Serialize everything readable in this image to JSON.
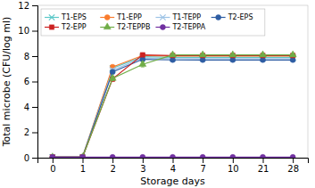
{
  "chart_data": {
    "type": "line",
    "xlabel": "Storage days",
    "ylabel": "Total microbe (CFU/log ml)",
    "categories": [
      0,
      1,
      2,
      3,
      4,
      7,
      10,
      21,
      28
    ],
    "series": [
      {
        "name": "T1-EPS",
        "color": "#5BC8C8",
        "marker": "x",
        "values": [
          0.05,
          0.05,
          7.05,
          7.95,
          7.9,
          7.9,
          7.9,
          7.9,
          7.9
        ],
        "errors": [
          0.03,
          0.03,
          0.13,
          0.08,
          0.0,
          0.0,
          0.0,
          0.0,
          0.0
        ]
      },
      {
        "name": "T1-EPP",
        "color": "#F97C2E",
        "marker": "circle",
        "values": [
          0.05,
          0.05,
          7.15,
          8.05,
          8.0,
          8.0,
          8.0,
          8.0,
          8.0
        ],
        "errors": [
          0.03,
          0.03,
          0.13,
          0.1,
          0.0,
          0.0,
          0.0,
          0.0,
          0.0
        ]
      },
      {
        "name": "T1-TEPP",
        "color": "#9DC3E6",
        "marker": "x",
        "values": [
          0.05,
          0.05,
          6.9,
          7.85,
          7.8,
          7.8,
          7.8,
          7.8,
          7.8
        ],
        "errors": [
          0.03,
          0.03,
          0.13,
          0.08,
          0.0,
          0.0,
          0.0,
          0.0,
          0.0
        ]
      },
      {
        "name": "T2-EPS",
        "color": "#2E5DA3",
        "marker": "circle",
        "values": [
          0.05,
          0.05,
          6.75,
          7.75,
          7.7,
          7.7,
          7.7,
          7.7,
          7.7
        ],
        "errors": [
          0.03,
          0.03,
          0.13,
          0.08,
          0.0,
          0.0,
          0.0,
          0.0,
          0.0
        ]
      },
      {
        "name": "T2-EPP",
        "color": "#CC2222",
        "marker": "square",
        "values": [
          0.05,
          0.05,
          6.2,
          8.1,
          8.05,
          8.05,
          8.05,
          8.05,
          8.05
        ],
        "errors": [
          0.03,
          0.03,
          0.18,
          0.12,
          0.0,
          0.0,
          0.0,
          0.0,
          0.0
        ]
      },
      {
        "name": "T2-TEPPB",
        "color": "#70AD47",
        "marker": "triangle",
        "values": [
          0.05,
          0.05,
          6.25,
          7.35,
          8.1,
          8.1,
          8.1,
          8.1,
          8.1
        ],
        "errors": [
          0.03,
          0.03,
          0.18,
          0.2,
          0.1,
          0.0,
          0.0,
          0.0,
          0.0
        ]
      },
      {
        "name": "T2-TEPPA",
        "color": "#7030A0",
        "marker": "circle",
        "values": [
          0.05,
          0.05,
          0.05,
          0.05,
          0.05,
          0.05,
          0.05,
          0.05,
          0.05
        ],
        "errors": [
          0.0,
          0.0,
          0.0,
          0.0,
          0.0,
          0.0,
          0.0,
          0.0,
          0.0
        ]
      }
    ],
    "ylim": [
      0,
      12
    ],
    "yticks": [
      0,
      2,
      4,
      6,
      8,
      10,
      12
    ],
    "grid": false,
    "legend": "upper left"
  }
}
